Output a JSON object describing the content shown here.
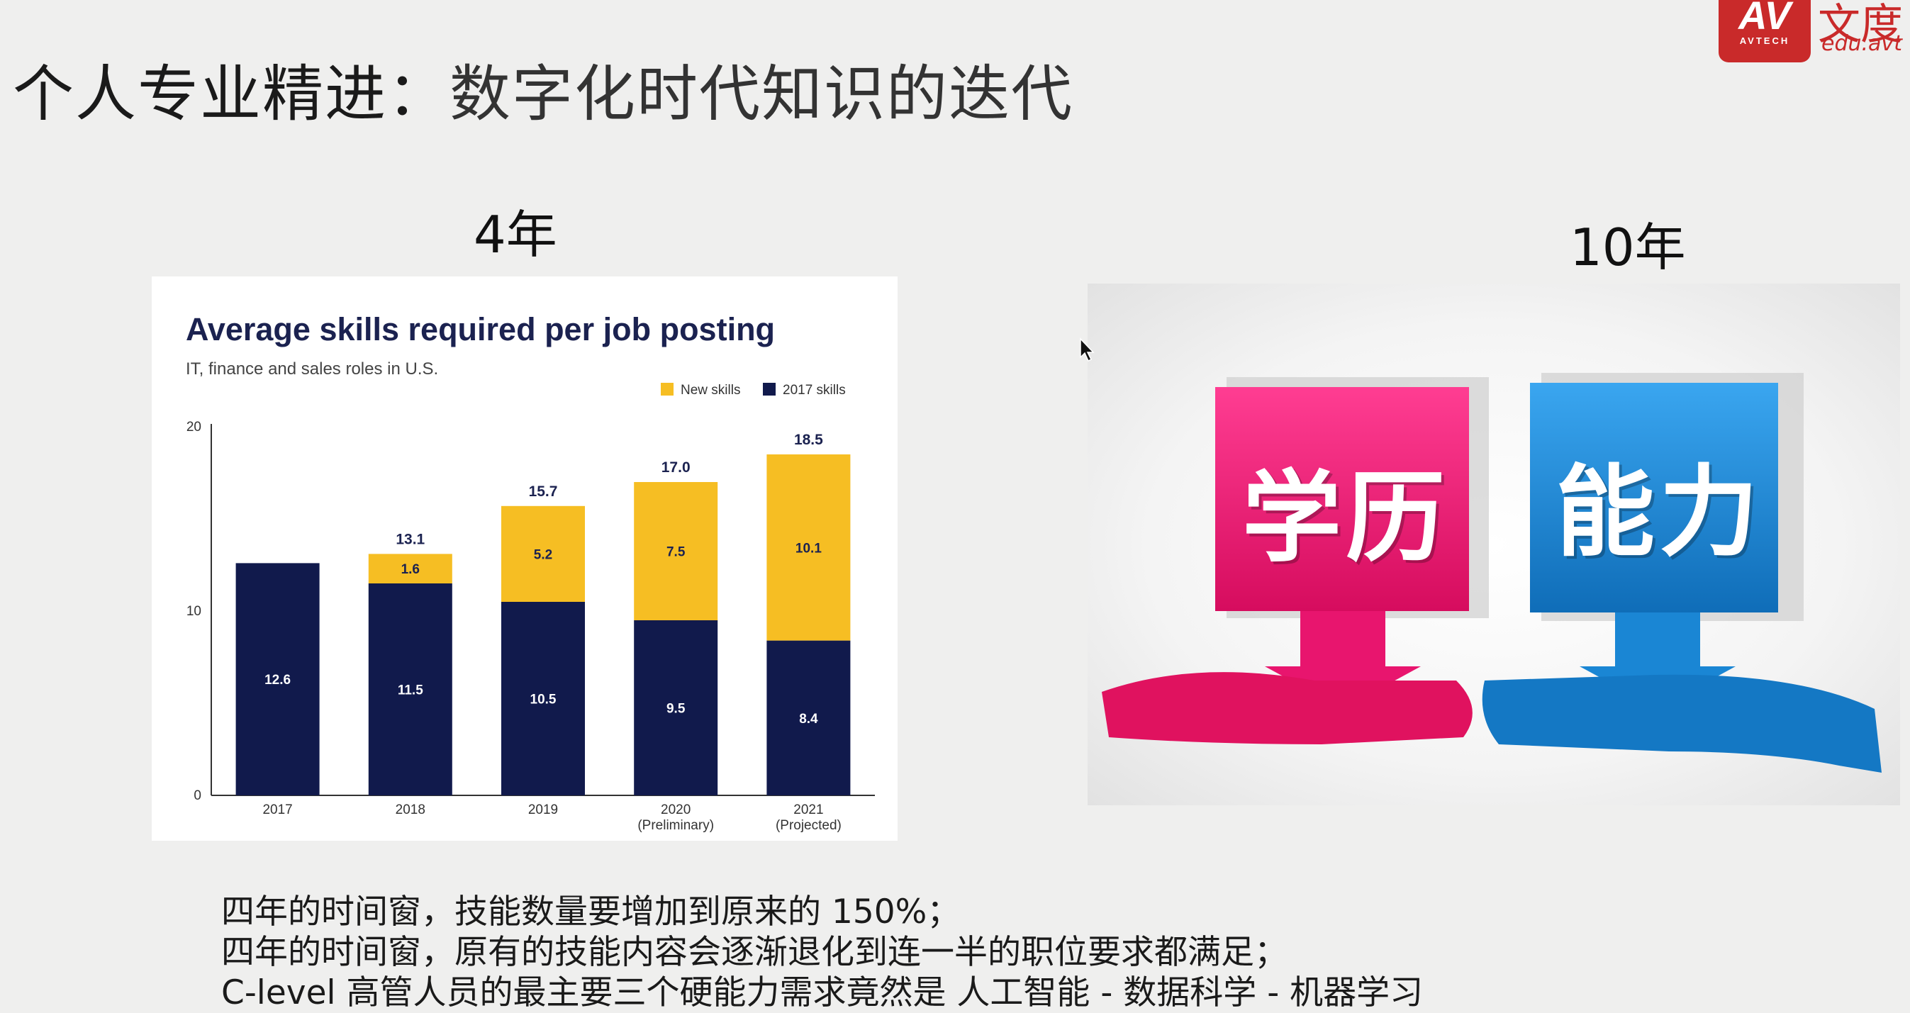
{
  "slide": {
    "title_main": "个人专业精进：",
    "title_sub": "数字化时代知识的迭代"
  },
  "logo": {
    "mark": "AV",
    "brand": "AVTECH",
    "cn_text": "文度",
    "url": "edu.avt",
    "color": "#c92a2a"
  },
  "labels": {
    "left": "4年",
    "right": "10年"
  },
  "chart_data": {
    "type": "bar",
    "stacked": true,
    "title": "Average skills required per job posting",
    "subtitle": "IT, finance and sales roles in U.S.",
    "categories": [
      "2017",
      "2018",
      "2019",
      "2020",
      "2021"
    ],
    "category_notes": [
      "",
      "",
      "",
      "(Preliminary)",
      "(Projected)"
    ],
    "series": [
      {
        "name": "2017 skills",
        "values": [
          12.6,
          11.5,
          10.5,
          9.5,
          8.4
        ],
        "color": "#111a4c"
      },
      {
        "name": "New skills",
        "values": [
          0,
          1.6,
          5.2,
          7.5,
          10.1
        ],
        "color": "#f6be23"
      }
    ],
    "totals": [
      "",
      "13.1",
      "15.7",
      "17.0",
      "18.5"
    ],
    "legend": [
      "New skills",
      "2017 skills"
    ],
    "legend_position": "top-right",
    "ylim": [
      0,
      20
    ],
    "yticks": [
      0,
      10,
      20
    ],
    "xlabel": "",
    "ylabel": ""
  },
  "photo": {
    "left_sign": "学历",
    "right_sign": "能力",
    "left_color": "#e8156e",
    "right_color": "#1a86d4"
  },
  "notes": [
    "四年的时间窗，技能数量要增加到原来的 150%；",
    "四年的时间窗，原有的技能内容会逐渐退化到连一半的职位要求都满足；",
    "C-level 高管人员的最主要三个硬能力需求竟然是 人工智能 - 数据科学 - 机器学习"
  ]
}
